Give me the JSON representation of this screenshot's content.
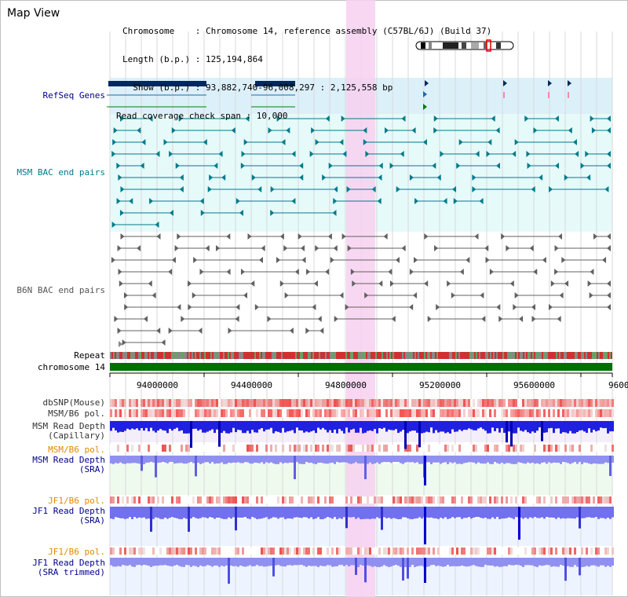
{
  "window": {
    "title": "Map View"
  },
  "header": {
    "lines": [
      {
        "key": "Chromosome    ",
        "value": "Chromosome 14, reference assembly (C57BL/6J) (Build 37)"
      },
      {
        "key": "Length (b.p.) ",
        "value": "125,194,864"
      },
      {
        "key": "  Show (b.p.) ",
        "value": "93,882,740-96,008,297 : 2,125,558 bp"
      }
    ],
    "coverage": "Read coverage check span : 10,000"
  },
  "tracks": {
    "refseq": "RefSeq Genes",
    "msm_bac": "MSM BAC end pairs",
    "b6n_bac": "B6N BAC end pairs",
    "repeat": "Repeat",
    "chromosome": "chromosome 14",
    "dbsnp": "dbSNP(Mouse)",
    "msm_b6_pol": "MSM/B6 pol.",
    "msm_rd_cap": [
      "MSM Read Depth",
      "(Capillary)"
    ],
    "msm_b6_pol2": "MSM/B6 pol.",
    "msm_rd_sra": [
      "MSM Read Depth",
      "(SRA)"
    ],
    "jf1_b6_pol": "JF1/B6 pol.",
    "jf1_rd_sra": [
      "JF1 Read Depth",
      "(SRA)"
    ],
    "jf1_b6_pol2": "JF1/B6 pol.",
    "jf1_rd_trim": [
      "JF1 Read Depth",
      "(SRA trimmed)"
    ]
  },
  "axis": {
    "ticks": [
      "94000000",
      "94400000",
      "94800000",
      "95200000",
      "95600000",
      "9600"
    ]
  },
  "colors": {
    "refseq_bg": "#dcf0fa",
    "msm_bg": "#e6fafa",
    "highlight": "#f7d0f0",
    "chromosome": "#007000",
    "navy_label": "#00008b",
    "teal_label": "#007b8b",
    "orange_label": "#e08a00"
  }
}
